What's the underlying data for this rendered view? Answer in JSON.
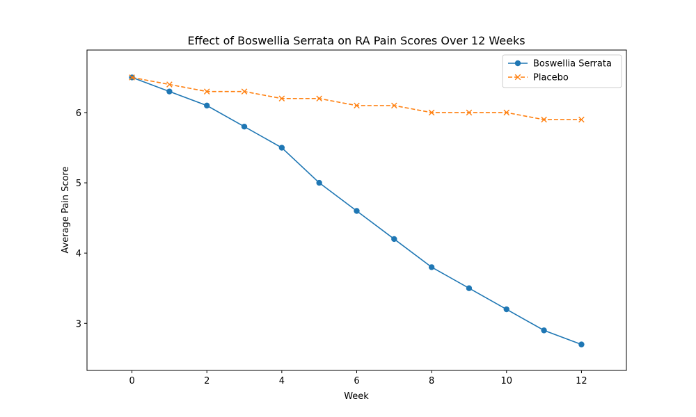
{
  "chart_data": {
    "type": "line",
    "title": "Effect of Boswellia Serrata on RA Pain Scores Over 12 Weeks",
    "xlabel": "Week",
    "ylabel": "Average Pain Score",
    "xlim": [
      -1.2,
      13.2
    ],
    "ylim": [
      2.33,
      6.89
    ],
    "xticks": [
      0,
      2,
      4,
      6,
      8,
      10,
      12
    ],
    "yticks": [
      3,
      4,
      5,
      6
    ],
    "x": [
      0,
      1,
      2,
      3,
      4,
      5,
      6,
      7,
      8,
      9,
      10,
      11,
      12
    ],
    "grid": false,
    "legend_position": "top-right",
    "series": [
      {
        "name": "Boswellia Serrata",
        "color": "#1f77b4",
        "line_style": "solid",
        "marker": "circle",
        "values": [
          6.5,
          6.3,
          6.1,
          5.8,
          5.5,
          5.0,
          4.6,
          4.2,
          3.8,
          3.5,
          3.2,
          2.9,
          2.7
        ]
      },
      {
        "name": "Placebo",
        "color": "#ff7f0e",
        "line_style": "dashed",
        "marker": "x",
        "values": [
          6.5,
          6.4,
          6.3,
          6.3,
          6.2,
          6.2,
          6.1,
          6.1,
          6.0,
          6.0,
          6.0,
          5.9,
          5.9
        ]
      }
    ]
  }
}
